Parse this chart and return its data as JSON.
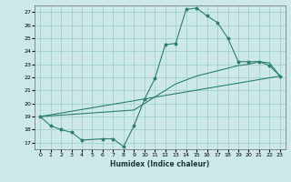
{
  "xlabel": "Humidex (Indice chaleur)",
  "bg_color": "#cce8e8",
  "grid_color": "#99cccc",
  "line_color": "#2e7d6e",
  "xlim": [
    -0.5,
    23.5
  ],
  "ylim": [
    16.5,
    27.5
  ],
  "xticks": [
    0,
    1,
    2,
    3,
    4,
    5,
    6,
    7,
    8,
    9,
    10,
    11,
    12,
    13,
    14,
    15,
    16,
    17,
    18,
    19,
    20,
    21,
    22,
    23
  ],
  "yticks": [
    17,
    18,
    19,
    20,
    21,
    22,
    23,
    24,
    25,
    26,
    27
  ],
  "jagged_x": [
    0,
    1,
    2,
    3,
    4,
    6,
    7,
    8,
    9,
    10,
    11,
    12,
    13,
    14,
    15,
    16,
    17,
    18,
    19,
    20,
    21,
    22,
    23
  ],
  "jagged_y": [
    19.0,
    18.3,
    18.0,
    17.8,
    17.2,
    17.3,
    17.3,
    16.7,
    18.3,
    20.3,
    21.9,
    24.5,
    24.6,
    27.2,
    27.3,
    26.7,
    26.2,
    25.0,
    23.2,
    23.2,
    23.2,
    22.9,
    22.1
  ],
  "lower_x": [
    0,
    9,
    10,
    11,
    12,
    13,
    14,
    15,
    16,
    17,
    18,
    19,
    20,
    21,
    22,
    23
  ],
  "lower_y": [
    19.0,
    19.5,
    20.0,
    20.5,
    21.0,
    21.5,
    21.8,
    22.1,
    22.3,
    22.5,
    22.7,
    22.9,
    23.0,
    23.2,
    23.1,
    22.1
  ],
  "trend_x": [
    0,
    23
  ],
  "trend_y": [
    19.0,
    22.1
  ]
}
